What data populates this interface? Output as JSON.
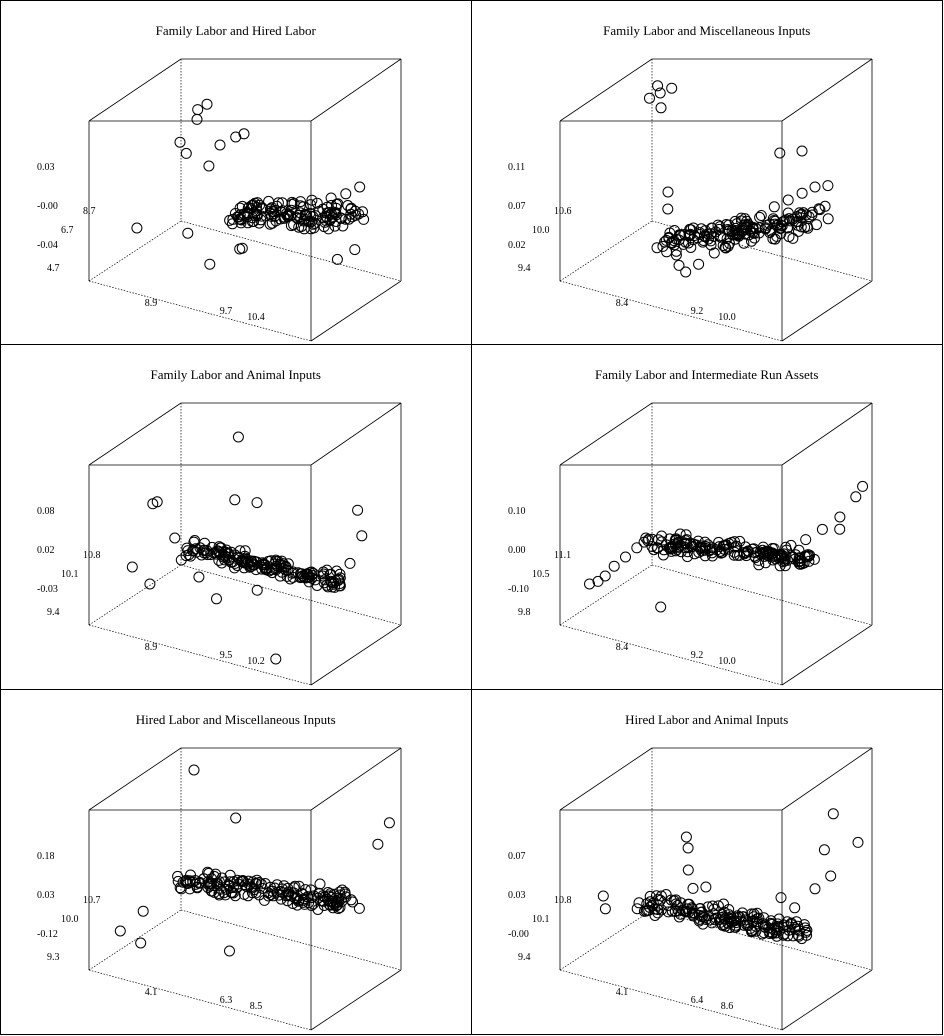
{
  "chart_data": [
    {
      "type": "scatter",
      "title": "Family Labor and Hired Labor",
      "z_ticks": [
        "0.03",
        "-0.00",
        "-0.04"
      ],
      "x_ticks": [
        "8.9",
        "9.7",
        "10.4"
      ],
      "y_ticks": [
        "8.7",
        "6.7",
        "4.7"
      ],
      "points": [
        [
          0.15,
          0.82,
          0.82
        ],
        [
          0.2,
          0.8,
          0.88
        ],
        [
          0.18,
          0.74,
          0.8
        ],
        [
          0.12,
          0.7,
          0.65
        ],
        [
          0.14,
          0.72,
          0.58
        ],
        [
          0.25,
          0.7,
          0.55
        ],
        [
          0.3,
          0.7,
          0.7
        ],
        [
          0.35,
          0.75,
          0.75
        ],
        [
          0.4,
          0.72,
          0.8
        ],
        [
          0.45,
          0.55,
          0.35
        ],
        [
          0.5,
          0.45,
          0.4
        ],
        [
          0.55,
          0.4,
          0.42
        ],
        [
          0.6,
          0.42,
          0.45
        ],
        [
          0.65,
          0.45,
          0.48
        ],
        [
          0.7,
          0.48,
          0.5
        ],
        [
          0.75,
          0.52,
          0.55
        ],
        [
          0.8,
          0.55,
          0.58
        ],
        [
          0.85,
          0.58,
          0.62
        ],
        [
          0.9,
          0.62,
          0.65
        ],
        [
          0.95,
          0.65,
          0.7
        ],
        [
          0.98,
          0.62,
          0.52
        ],
        [
          0.48,
          0.48,
          0.2
        ],
        [
          0.5,
          0.46,
          0.22
        ],
        [
          0.42,
          0.3,
          0.15
        ],
        [
          0.3,
          0.35,
          0.28
        ],
        [
          0.05,
          0.4,
          0.2
        ],
        [
          0.92,
          0.48,
          0.3
        ],
        [
          0.99,
          0.5,
          0.38
        ]
      ],
      "cluster": {
        "x": [
          0.45,
          0.98
        ],
        "y": [
          0.35,
          0.65
        ],
        "z_base": 0.42,
        "z_slope": 0.3,
        "spread": 0.08,
        "n": 140
      }
    },
    {
      "type": "scatter",
      "title": "Family Labor and Miscellaneous Inputs",
      "z_ticks": [
        "0.11",
        "0.07",
        "0.02"
      ],
      "x_ticks": [
        "8.4",
        "9.2",
        "10.0"
      ],
      "y_ticks": [
        "10.6",
        "10.0",
        "9.4"
      ],
      "points": [
        [
          0.1,
          0.82,
          0.95
        ],
        [
          0.12,
          0.8,
          0.92
        ],
        [
          0.08,
          0.78,
          0.88
        ],
        [
          0.14,
          0.76,
          0.85
        ],
        [
          0.18,
          0.78,
          0.98
        ],
        [
          0.3,
          0.45,
          0.5
        ],
        [
          0.32,
          0.4,
          0.42
        ],
        [
          0.35,
          0.35,
          0.3
        ],
        [
          0.4,
          0.3,
          0.2
        ],
        [
          0.42,
          0.28,
          0.15
        ],
        [
          0.45,
          0.28,
          0.12
        ],
        [
          0.5,
          0.3,
          0.18
        ],
        [
          0.55,
          0.35,
          0.25
        ],
        [
          0.6,
          0.38,
          0.3
        ],
        [
          0.65,
          0.42,
          0.4
        ],
        [
          0.7,
          0.48,
          0.48
        ],
        [
          0.75,
          0.52,
          0.55
        ],
        [
          0.8,
          0.55,
          0.6
        ],
        [
          0.85,
          0.58,
          0.65
        ],
        [
          0.9,
          0.6,
          0.7
        ],
        [
          0.95,
          0.62,
          0.72
        ],
        [
          0.7,
          0.7,
          0.8
        ],
        [
          0.8,
          0.7,
          0.85
        ],
        [
          0.98,
          0.55,
          0.55
        ]
      ],
      "cluster": {
        "x": [
          0.3,
          0.95
        ],
        "y": [
          0.28,
          0.62
        ],
        "z_base": 0.2,
        "z_slope": 0.55,
        "spread": 0.1,
        "n": 160
      }
    },
    {
      "type": "scatter",
      "title": "Family Labor and Animal Inputs",
      "z_ticks": [
        "0.08",
        "0.02",
        "-0.03"
      ],
      "x_ticks": [
        "8.9",
        "9.5",
        "10.2"
      ],
      "y_ticks": [
        "10.8",
        "10.1",
        "9.4"
      ],
      "points": [
        [
          0.08,
          0.5,
          0.6
        ],
        [
          0.1,
          0.5,
          0.62
        ],
        [
          0.05,
          0.35,
          0.25
        ],
        [
          0.15,
          0.3,
          0.2
        ],
        [
          0.2,
          0.45,
          0.45
        ],
        [
          0.3,
          0.9,
          0.95
        ],
        [
          0.4,
          0.62,
          0.7
        ],
        [
          0.5,
          0.62,
          0.72
        ],
        [
          0.92,
          0.7,
          0.8
        ],
        [
          0.98,
          0.6,
          0.7
        ],
        [
          0.96,
          0.52,
          0.55
        ],
        [
          0.8,
          0.1,
          0.05
        ],
        [
          0.25,
          0.4,
          0.35
        ],
        [
          0.35,
          0.35,
          0.3
        ],
        [
          0.45,
          0.3,
          0.22
        ],
        [
          0.6,
          0.38,
          0.3
        ],
        [
          0.85,
          0.5,
          0.45
        ],
        [
          0.9,
          0.52,
          0.48
        ]
      ],
      "cluster": {
        "x": [
          0.25,
          0.95
        ],
        "y": [
          0.4,
          0.55
        ],
        "z_base": 0.4,
        "z_slope": 0.06,
        "spread": 0.05,
        "n": 170
      }
    },
    {
      "type": "scatter",
      "title": "Family Labor and Intermediate Run Assets",
      "z_ticks": [
        "0.10",
        "0.00",
        "-0.10"
      ],
      "x_ticks": [
        "8.4",
        "9.2",
        "10.0"
      ],
      "y_ticks": [
        "11.1",
        "10.5",
        "9.8"
      ],
      "points": [
        [
          0.05,
          0.2,
          0.2
        ],
        [
          0.08,
          0.22,
          0.22
        ],
        [
          0.1,
          0.25,
          0.25
        ],
        [
          0.12,
          0.3,
          0.3
        ],
        [
          0.15,
          0.35,
          0.35
        ],
        [
          0.18,
          0.4,
          0.4
        ],
        [
          0.2,
          0.45,
          0.45
        ],
        [
          0.3,
          0.4,
          0.4
        ],
        [
          0.4,
          0.42,
          0.42
        ],
        [
          0.5,
          0.45,
          0.45
        ],
        [
          0.6,
          0.48,
          0.48
        ],
        [
          0.7,
          0.52,
          0.52
        ],
        [
          0.8,
          0.58,
          0.58
        ],
        [
          0.85,
          0.62,
          0.62
        ],
        [
          0.9,
          0.68,
          0.68
        ],
        [
          0.95,
          0.75,
          0.75
        ],
        [
          0.98,
          0.85,
          0.85
        ],
        [
          0.99,
          0.9,
          0.9
        ],
        [
          0.97,
          0.7,
          0.7
        ],
        [
          0.35,
          0.25,
          0.15
        ]
      ],
      "cluster": {
        "x": [
          0.2,
          0.92
        ],
        "y": [
          0.4,
          0.58
        ],
        "z_base": 0.42,
        "z_slope": 0.2,
        "spread": 0.06,
        "n": 170
      }
    },
    {
      "type": "scatter",
      "title": "Hired Labor and Miscellaneous Inputs",
      "z_ticks": [
        "0.18",
        "0.03",
        "-0.12"
      ],
      "x_ticks": [
        "4.1",
        "6.3",
        "8.5"
      ],
      "y_ticks": [
        "10.7",
        "10.0",
        "9.3"
      ],
      "points": [
        [
          0.1,
          0.9,
          0.95
        ],
        [
          0.12,
          0.3,
          0.3
        ],
        [
          0.05,
          0.22,
          0.18
        ],
        [
          0.15,
          0.2,
          0.15
        ],
        [
          0.35,
          0.75,
          0.8
        ],
        [
          0.55,
          0.2,
          0.25
        ],
        [
          0.98,
          0.9,
          0.95
        ],
        [
          0.97,
          0.8,
          0.85
        ],
        [
          0.99,
          0.55,
          0.55
        ],
        [
          0.2,
          0.48,
          0.48
        ],
        [
          0.25,
          0.5,
          0.5
        ],
        [
          0.3,
          0.48,
          0.48
        ],
        [
          0.4,
          0.45,
          0.45
        ],
        [
          0.5,
          0.48,
          0.48
        ],
        [
          0.6,
          0.5,
          0.52
        ],
        [
          0.7,
          0.55,
          0.58
        ],
        [
          0.8,
          0.58,
          0.62
        ],
        [
          0.9,
          0.58,
          0.62
        ]
      ],
      "cluster": {
        "x": [
          0.2,
          0.95
        ],
        "y": [
          0.42,
          0.62
        ],
        "z_base": 0.45,
        "z_slope": 0.18,
        "spread": 0.06,
        "n": 170
      }
    },
    {
      "type": "scatter",
      "title": "Hired Labor and Animal Inputs",
      "z_ticks": [
        "0.07",
        "0.03",
        "-0.00"
      ],
      "x_ticks": [
        "4.1",
        "6.4",
        "8.6"
      ],
      "y_ticks": [
        "10.8",
        "10.1",
        "9.4"
      ],
      "points": [
        [
          0.05,
          0.35,
          0.35
        ],
        [
          0.08,
          0.3,
          0.3
        ],
        [
          0.3,
          0.65,
          0.7
        ],
        [
          0.32,
          0.62,
          0.65
        ],
        [
          0.35,
          0.55,
          0.55
        ],
        [
          0.4,
          0.48,
          0.48
        ],
        [
          0.45,
          0.5,
          0.5
        ],
        [
          0.55,
          0.45,
          0.45
        ],
        [
          0.65,
          0.4,
          0.4
        ],
        [
          0.7,
          0.38,
          0.38
        ],
        [
          0.75,
          0.4,
          0.42
        ],
        [
          0.8,
          0.45,
          0.45
        ],
        [
          0.85,
          0.5,
          0.52
        ],
        [
          0.9,
          0.6,
          0.62
        ],
        [
          0.95,
          0.65,
          0.7
        ],
        [
          0.99,
          0.85,
          0.85
        ],
        [
          0.85,
          0.92,
          0.95
        ],
        [
          0.88,
          0.75,
          0.8
        ],
        [
          0.78,
          0.52,
          0.55
        ]
      ],
      "cluster": {
        "x": [
          0.2,
          0.95
        ],
        "y": [
          0.3,
          0.5
        ],
        "z_base": 0.35,
        "z_slope": 0.12,
        "spread": 0.06,
        "n": 170
      }
    }
  ]
}
